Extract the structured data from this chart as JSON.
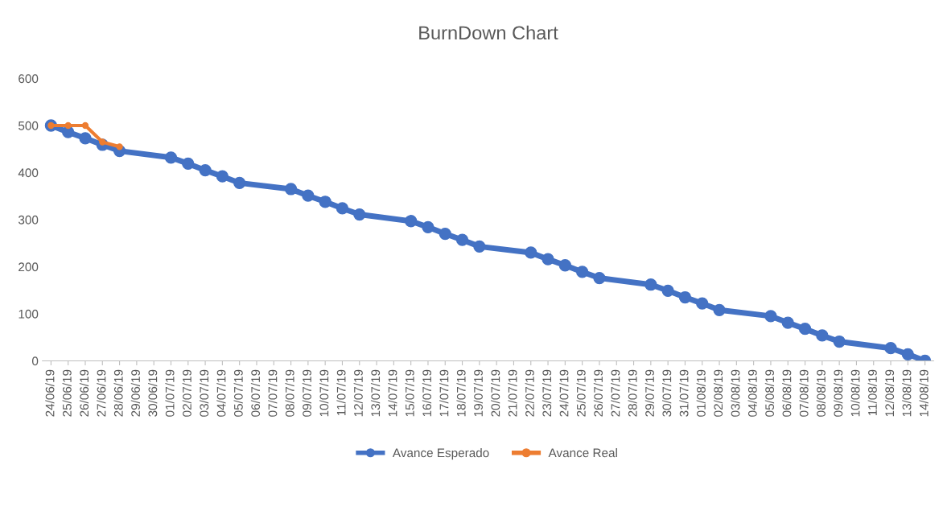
{
  "chart_data": {
    "type": "line",
    "title": "BurnDown Chart",
    "categories": [
      "24/06/19",
      "25/06/19",
      "26/06/19",
      "27/06/19",
      "28/06/19",
      "29/06/19",
      "30/06/19",
      "01/07/19",
      "02/07/19",
      "03/07/19",
      "04/07/19",
      "05/07/19",
      "06/07/19",
      "07/07/19",
      "08/07/19",
      "09/07/19",
      "10/07/19",
      "11/07/19",
      "12/07/19",
      "13/07/19",
      "14/07/19",
      "15/07/19",
      "16/07/19",
      "17/07/19",
      "18/07/19",
      "19/07/19",
      "20/07/19",
      "21/07/19",
      "22/07/19",
      "23/07/19",
      "24/07/19",
      "25/07/19",
      "26/07/19",
      "27/07/19",
      "28/07/19",
      "29/07/19",
      "30/07/19",
      "31/07/19",
      "01/08/19",
      "02/08/19",
      "03/08/19",
      "04/08/19",
      "05/08/19",
      "06/08/19",
      "07/08/19",
      "08/08/19",
      "09/08/19",
      "10/08/19",
      "11/08/19",
      "12/08/19",
      "13/08/19",
      "14/08/19"
    ],
    "series": [
      {
        "name": "Avance Esperado",
        "color": "#4472c4",
        "values": [
          500,
          486,
          473,
          459,
          446,
          null,
          null,
          432,
          419,
          405,
          392,
          378,
          null,
          null,
          365,
          351,
          338,
          324,
          311,
          null,
          null,
          297,
          284,
          270,
          257,
          243,
          null,
          null,
          230,
          216,
          203,
          189,
          176,
          null,
          null,
          162,
          149,
          135,
          122,
          108,
          null,
          null,
          95,
          81,
          68,
          54,
          41,
          null,
          null,
          27,
          14,
          0
        ]
      },
      {
        "name": "Avance Real",
        "color": "#ed7d31",
        "values": [
          500,
          500,
          500,
          465,
          455,
          null,
          null,
          null,
          null,
          null,
          null,
          null,
          null,
          null,
          null,
          null,
          null,
          null,
          null,
          null,
          null,
          null,
          null,
          null,
          null,
          null,
          null,
          null,
          null,
          null,
          null,
          null,
          null,
          null,
          null,
          null,
          null,
          null,
          null,
          null,
          null,
          null,
          null,
          null,
          null,
          null,
          null,
          null,
          null,
          null,
          null,
          null
        ]
      }
    ],
    "ylim": [
      0,
      600
    ],
    "yticks": [
      0,
      100,
      200,
      300,
      400,
      500,
      600
    ],
    "grid": false,
    "legend": "bottom",
    "marker": "circle",
    "line_style": "solid"
  }
}
